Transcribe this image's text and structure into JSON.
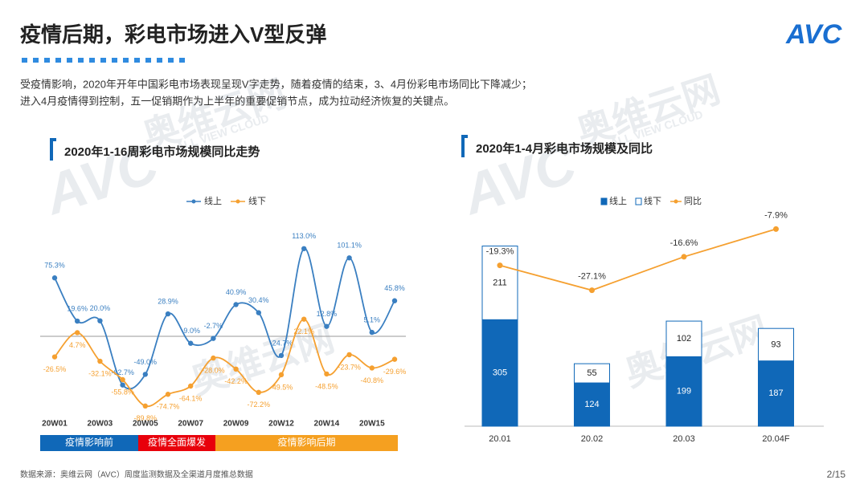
{
  "header": {
    "title": "疫情后期，彩电市场进入V型反弹",
    "logo": "AVC"
  },
  "intro": [
    "受疫情影响，2020年开年中国彩电市场表现呈现V字走势，随着疫情的结束，3、4月份彩电市场同比下降减少；",
    "进入4月疫情得到控制，五一促销期作为上半年的重要促销节点，成为拉动经济恢复的关键点。"
  ],
  "watermark": "奥维云网",
  "watermark_en": "ALL VIEW CLOUD",
  "chart_data": [
    {
      "type": "line",
      "title": "2020年1-16周彩电市场规模同比走势",
      "categories": [
        "20W01",
        null,
        "20W03",
        null,
        "20W05",
        null,
        "20W07",
        null,
        "20W09",
        null,
        "20W12",
        null,
        "20W14",
        null,
        "20W15",
        null
      ],
      "ylim": [
        -100,
        120
      ],
      "series": [
        {
          "name": "线上",
          "color": "#3a7fc1",
          "values": [
            75.3,
            19.6,
            20.0,
            -62.7,
            -49.0,
            28.9,
            -9.0,
            -2.7,
            40.9,
            30.4,
            -24.7,
            113.0,
            12.8,
            101.1,
            5.1,
            45.8
          ],
          "value_labels": [
            "75.3%",
            "19.6%",
            "20.0%",
            "-62.7%",
            "-49.0%",
            "28.9%",
            "-9.0%",
            "-2.7%",
            "40.9%",
            "30.4%",
            "-24.7%",
            "113.0%",
            "12.8%",
            "101.1%",
            "5.1%",
            "45.8%"
          ]
        },
        {
          "name": "线下",
          "color": "#f5a030",
          "values": [
            -26.5,
            4.7,
            -32.1,
            -55.8,
            -89.8,
            -74.7,
            -64.1,
            -28.0,
            -42.2,
            -72.2,
            -49.5,
            22.1,
            -48.5,
            -23.7,
            -40.8,
            -29.6
          ],
          "value_labels": [
            "-26.5%",
            "4.7%",
            "-32.1%",
            "-55.8%",
            "-89.8%",
            "-74.7%",
            "-64.1%",
            "-28.0%",
            "-42.2%",
            "-72.2%",
            "-49.5%",
            "22.1%",
            "-48.5%",
            "-23.7%",
            "-40.8%",
            "-29.6%"
          ]
        }
      ],
      "phases": [
        {
          "label": "疫情影响前",
          "color": "#1068b8"
        },
        {
          "label": "疫情全面爆发",
          "color": "#e8000b"
        },
        {
          "label": "疫情影响后期",
          "color": "#f5a020"
        }
      ]
    },
    {
      "type": "stacked-bar-line",
      "title": "2020年1-4月彩电市场规模及同比",
      "categories": [
        "20.01",
        "20.02",
        "20.03",
        "20.04F"
      ],
      "ylim": [
        0,
        600
      ],
      "y2lim": [
        -35,
        0
      ],
      "series": [
        {
          "name": "线上",
          "color": "#1068b8",
          "values": [
            305,
            124,
            199,
            187
          ]
        },
        {
          "name": "线下",
          "color": "#ffffff",
          "values": [
            211,
            55,
            102,
            93
          ]
        },
        {
          "name": "同比",
          "color": "#f5a030",
          "axis": "y2",
          "values": [
            -19.3,
            -27.1,
            -16.6,
            -7.9
          ],
          "value_labels": [
            "-19.3%",
            "-27.1%",
            "-16.6%",
            "-7.9%"
          ]
        }
      ]
    }
  ],
  "footer": {
    "source": "数据来源：奥维云网（AVC）周度监测数据及全渠道月度推总数据",
    "page": "2/15"
  }
}
